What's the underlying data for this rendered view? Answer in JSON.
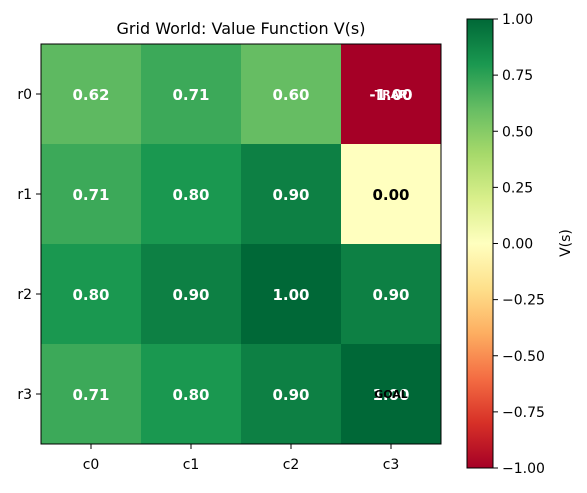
{
  "chart_data": {
    "type": "heatmap",
    "title": "Grid World: Value Function V(s)",
    "rows": [
      "r0",
      "r1",
      "r2",
      "r3"
    ],
    "cols": [
      "c0",
      "c1",
      "c2",
      "c3"
    ],
    "values": [
      [
        0.62,
        0.71,
        0.6,
        -1.0
      ],
      [
        0.71,
        0.8,
        0.9,
        0.0
      ],
      [
        0.8,
        0.9,
        1.0,
        0.9
      ],
      [
        0.71,
        0.8,
        0.9,
        1.0
      ]
    ],
    "cell_labels": [
      [
        "0.62",
        "0.71",
        "0.60",
        "-1.00"
      ],
      [
        "0.71",
        "0.80",
        "0.90",
        "0.00"
      ],
      [
        "0.80",
        "0.90",
        "1.00",
        "0.90"
      ],
      [
        "0.71",
        "0.80",
        "0.90",
        "1.00"
      ]
    ],
    "overlay_labels": [
      {
        "row": 0,
        "col": 3,
        "text": "TRAP"
      },
      {
        "row": 3,
        "col": 3,
        "text": "GOAL"
      }
    ],
    "colormap": "RdYlGn",
    "vmin": -1.0,
    "vmax": 1.0,
    "colorbar": {
      "label": "V(s)",
      "ticks": [
        1.0,
        0.75,
        0.5,
        0.25,
        0.0,
        -0.25,
        -0.5,
        -0.75,
        -1.0
      ],
      "tick_labels": [
        "1.00",
        "0.75",
        "0.50",
        "0.25",
        "0.00",
        "−0.25",
        "−0.50",
        "−0.75",
        "−1.00"
      ]
    }
  }
}
